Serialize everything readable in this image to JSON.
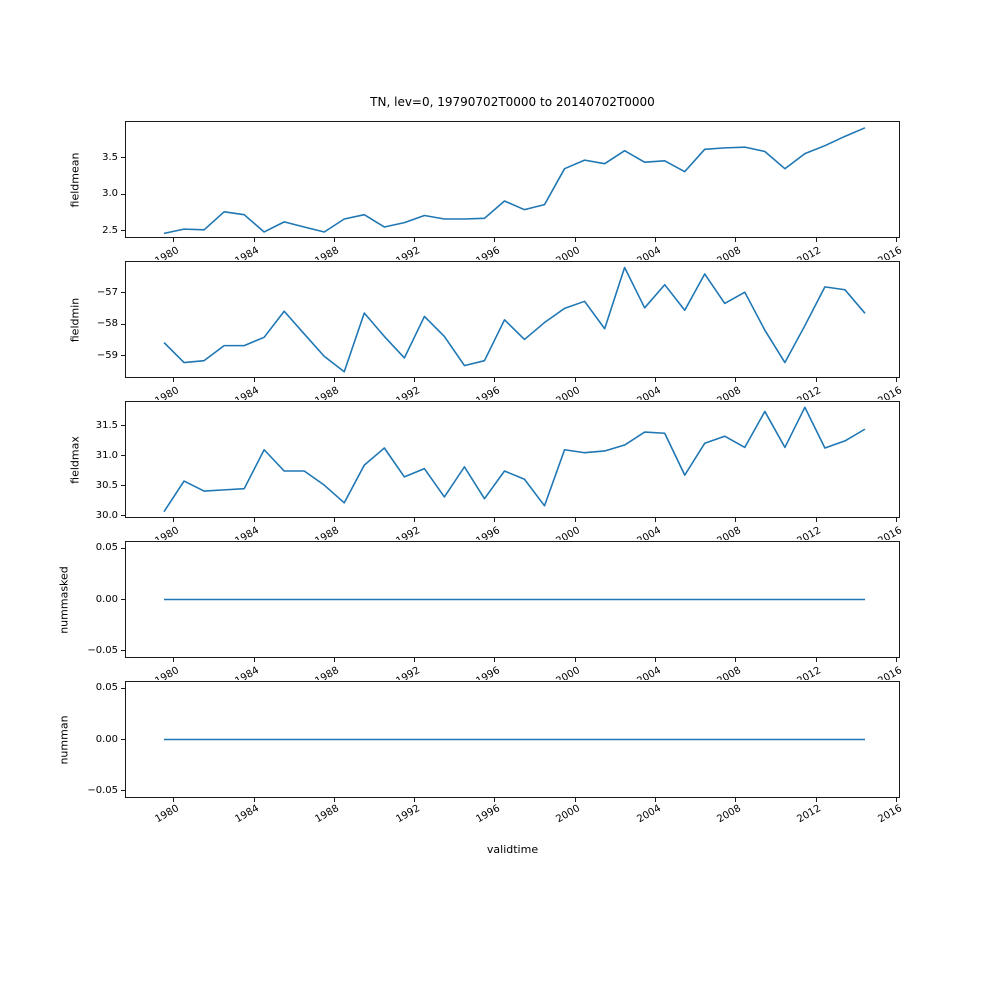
{
  "figure": {
    "title": "TN, lev=0, 19790702T0000 to 20140702T0000",
    "xlabel": "validtime",
    "background": "#ffffff",
    "line_color": "#1f77b4",
    "spine_color": "#1a1a1a",
    "text_color": "#000000"
  },
  "x_axis": {
    "xlim": [
      1977.6,
      2016.2
    ],
    "tick_years": [
      1980,
      1984,
      1988,
      1992,
      1996,
      2000,
      2004,
      2008,
      2012,
      2016
    ],
    "tick_labels": [
      "1980",
      "1984",
      "1988",
      "1992",
      "1996",
      "2000",
      "2004",
      "2008",
      "2012",
      "2016"
    ],
    "label_rotation_deg": 30
  },
  "validtime_years": [
    1979,
    1980,
    1981,
    1982,
    1983,
    1984,
    1985,
    1986,
    1987,
    1988,
    1989,
    1990,
    1991,
    1992,
    1993,
    1994,
    1995,
    1996,
    1997,
    1998,
    1999,
    2000,
    2001,
    2002,
    2003,
    2004,
    2005,
    2006,
    2007,
    2008,
    2009,
    2010,
    2011,
    2012,
    2013,
    2014
  ],
  "chart_data": [
    {
      "type": "line",
      "ylabel": "fieldmean",
      "x": "validtime_years",
      "ylim": [
        2.4,
        4.0
      ],
      "ytick_values": [
        2.5,
        3.0,
        3.5
      ],
      "ytick_labels": [
        "2.5",
        "3.0",
        "3.5"
      ],
      "values": [
        2.45,
        2.51,
        2.5,
        2.75,
        2.71,
        2.47,
        2.61,
        2.54,
        2.47,
        2.65,
        2.71,
        2.54,
        2.6,
        2.7,
        2.65,
        2.65,
        2.66,
        2.9,
        2.78,
        2.85,
        3.35,
        3.47,
        3.42,
        3.6,
        3.44,
        3.46,
        3.31,
        3.62,
        3.64,
        3.65,
        3.59,
        3.35,
        3.56,
        3.67,
        3.8,
        3.92
      ]
    },
    {
      "type": "line",
      "ylabel": "fieldmin",
      "x": "validtime_years",
      "ylim": [
        -59.72,
        -55.98
      ],
      "ytick_values": [
        -59,
        -58,
        -57
      ],
      "ytick_labels": [
        "−59",
        "−58",
        "−57"
      ],
      "values": [
        -58.6,
        -59.25,
        -59.19,
        -58.7,
        -58.7,
        -58.43,
        -57.58,
        -58.32,
        -59.05,
        -59.55,
        -57.64,
        -58.4,
        -59.1,
        -57.75,
        -58.4,
        -59.35,
        -59.19,
        -57.86,
        -58.5,
        -57.95,
        -57.49,
        -57.26,
        -58.15,
        -56.16,
        -57.47,
        -56.72,
        -57.55,
        -56.37,
        -57.33,
        -56.96,
        -58.2,
        -59.25,
        -58.05,
        -56.79,
        -56.88,
        -57.65
      ]
    },
    {
      "type": "line",
      "ylabel": "fieldmax",
      "x": "validtime_years",
      "ylim": [
        29.96,
        31.91
      ],
      "ytick_values": [
        30.0,
        30.5,
        31.0,
        31.5
      ],
      "ytick_labels": [
        "30.0",
        "30.5",
        "31.0",
        "31.5"
      ],
      "values": [
        30.05,
        30.57,
        30.4,
        30.42,
        30.44,
        31.1,
        30.74,
        30.74,
        30.5,
        30.2,
        30.84,
        31.13,
        30.64,
        30.78,
        30.3,
        30.81,
        30.27,
        30.74,
        30.6,
        30.15,
        31.1,
        31.05,
        31.08,
        31.18,
        31.4,
        31.38,
        30.67,
        31.21,
        31.33,
        31.14,
        31.75,
        31.14,
        31.82,
        31.13,
        31.25,
        31.45
      ]
    },
    {
      "type": "line",
      "ylabel": "nummasked",
      "x": "validtime_years",
      "ylim": [
        -0.057,
        0.057
      ],
      "ytick_values": [
        0.05,
        0.0,
        -0.05
      ],
      "ytick_labels": [
        "0.05",
        "0.00",
        "−0.05"
      ],
      "values": [
        0,
        0,
        0,
        0,
        0,
        0,
        0,
        0,
        0,
        0,
        0,
        0,
        0,
        0,
        0,
        0,
        0,
        0,
        0,
        0,
        0,
        0,
        0,
        0,
        0,
        0,
        0,
        0,
        0,
        0,
        0,
        0,
        0,
        0,
        0,
        0
      ]
    },
    {
      "type": "line",
      "ylabel": "numman",
      "x": "validtime_years",
      "ylim": [
        -0.057,
        0.057
      ],
      "ytick_values": [
        0.05,
        0.0,
        -0.05
      ],
      "ytick_labels": [
        "0.05",
        "0.00",
        "−0.05"
      ],
      "values": [
        0,
        0,
        0,
        0,
        0,
        0,
        0,
        0,
        0,
        0,
        0,
        0,
        0,
        0,
        0,
        0,
        0,
        0,
        0,
        0,
        0,
        0,
        0,
        0,
        0,
        0,
        0,
        0,
        0,
        0,
        0,
        0,
        0,
        0,
        0,
        0
      ]
    }
  ]
}
